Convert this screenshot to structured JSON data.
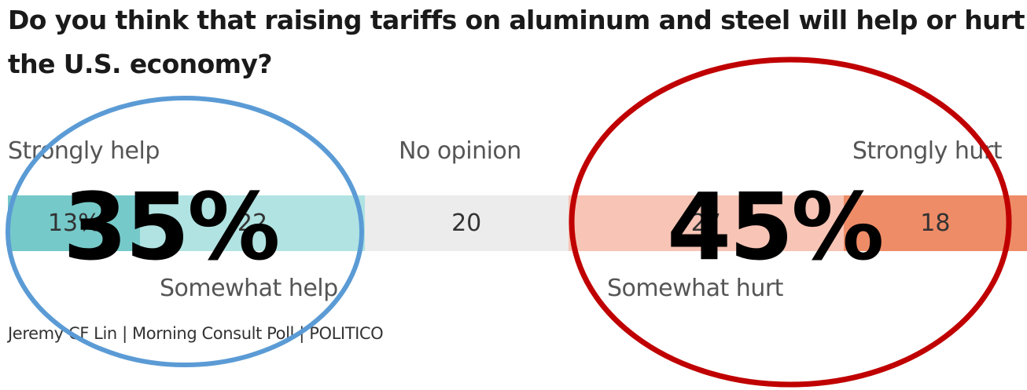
{
  "chart_data": {
    "type": "bar",
    "title": "Do you think that raising tariffs on aluminum and steel will help or hurt the U.S. economy?",
    "title_lines": [
      "Do you think that raising tariffs on aluminum and steel will help or hurt",
      "the U.S. economy?"
    ],
    "categories": [
      "Strongly help",
      "Somewhat help",
      "No opinion",
      "Somewhat hurt",
      "Strongly hurt"
    ],
    "values": [
      13,
      22,
      20,
      27,
      18
    ],
    "value_labels": [
      "13%",
      "22",
      "20",
      "27",
      "18"
    ],
    "colors": [
      "#76c9c9",
      "#b0e3e2",
      "#ececec",
      "#f7c4b5",
      "#ee8c67"
    ],
    "totals": [
      {
        "label": "35%",
        "ring_color": "#5b9bd5"
      },
      {
        "label": "45%",
        "ring_color": "#c00000"
      }
    ],
    "source": "Jeremy CF Lin | Morning Consult Poll | POLITICO"
  }
}
